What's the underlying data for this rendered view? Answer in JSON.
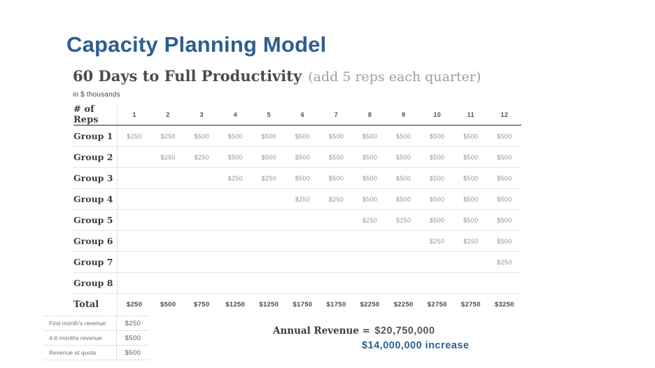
{
  "header": {
    "title": "Capacity Planning Model",
    "subtitle": "60 Days to Full Productivity",
    "subtitle_note": "(add 5 reps each quarter)",
    "units_label": "in $ thousands"
  },
  "table": {
    "header_label": "# of Reps",
    "months": [
      "1",
      "2",
      "3",
      "4",
      "5",
      "6",
      "7",
      "8",
      "9",
      "10",
      "11",
      "12"
    ],
    "rows": [
      {
        "label": "Group 1",
        "values": [
          "$250",
          "$250",
          "$500",
          "$500",
          "$500",
          "$500",
          "$500",
          "$500",
          "$500",
          "$500",
          "$500",
          "$500"
        ]
      },
      {
        "label": "Group 2",
        "values": [
          "",
          "$250",
          "$250",
          "$500",
          "$500",
          "$500",
          "$500",
          "$500",
          "$500",
          "$500",
          "$500",
          "$500"
        ]
      },
      {
        "label": "Group 3",
        "values": [
          "",
          "",
          "",
          "$250",
          "$250",
          "$500",
          "$500",
          "$500",
          "$500",
          "$500",
          "$500",
          "$500"
        ]
      },
      {
        "label": "Group 4",
        "values": [
          "",
          "",
          "",
          "",
          "",
          "$250",
          "$250",
          "$500",
          "$500",
          "$500",
          "$500",
          "$500"
        ]
      },
      {
        "label": "Group 5",
        "values": [
          "",
          "",
          "",
          "",
          "",
          "",
          "",
          "$250",
          "$250",
          "$500",
          "$500",
          "$500"
        ]
      },
      {
        "label": "Group 6",
        "values": [
          "",
          "",
          "",
          "",
          "",
          "",
          "",
          "",
          "",
          "$250",
          "$250",
          "$500"
        ]
      },
      {
        "label": "Group 7",
        "values": [
          "",
          "",
          "",
          "",
          "",
          "",
          "",
          "",
          "",
          "",
          "",
          "$250"
        ]
      },
      {
        "label": "Group 8",
        "values": [
          "",
          "",
          "",
          "",
          "",
          "",
          "",
          "",
          "",
          "",
          "",
          ""
        ]
      }
    ],
    "total": {
      "label": "Total",
      "values": [
        "$250",
        "$500",
        "$750",
        "$1250",
        "$1250",
        "$1750",
        "$1750",
        "$2250",
        "$2250",
        "$2750",
        "$2750",
        "$3250"
      ]
    }
  },
  "legend": {
    "rows": [
      {
        "label": "First month's revenue",
        "value": "$250"
      },
      {
        "label": "4-6 months revenue",
        "value": "$500"
      },
      {
        "label": "Revenue at quota",
        "value": "$500"
      }
    ]
  },
  "summary": {
    "annual_label": "Annual Revenue =",
    "annual_value": "$20,750,000",
    "increase": "$14,000,000 increase"
  },
  "colors": {
    "title_blue": "#2e5d8f",
    "increase_blue": "#2d5f94"
  }
}
